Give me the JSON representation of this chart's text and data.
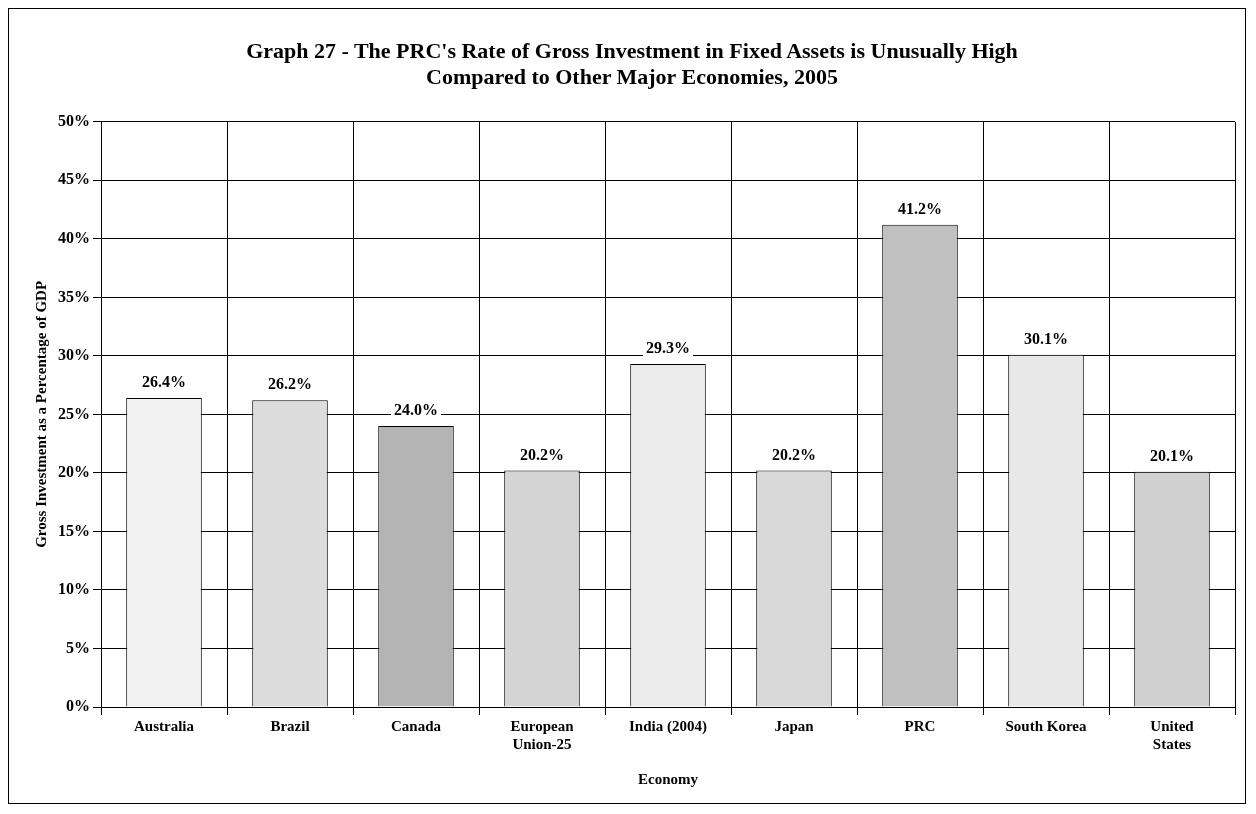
{
  "chart_data": {
    "type": "bar",
    "title": "Graph 27 - The PRC's Rate of Gross Investment in Fixed Assets is Unusually High Compared to Other Major Economies, 2005",
    "xlabel": "Economy",
    "ylabel": "Gross Investment as a Percentage of GDP",
    "categories": [
      "Australia",
      "Brazil",
      "Canada",
      "European Union-25",
      "India (2004)",
      "Japan",
      "PRC",
      "South Korea",
      "United States"
    ],
    "values": [
      26.4,
      26.2,
      24.0,
      20.2,
      29.3,
      20.2,
      41.2,
      30.1,
      20.1
    ],
    "value_labels": [
      "26.4%",
      "26.2%",
      "24.0%",
      "20.2%",
      "29.3%",
      "20.2%",
      "41.2%",
      "30.1%",
      "20.1%"
    ],
    "colors": [
      "#f2f2f2",
      "#dcdcdc",
      "#b4b4b4",
      "#d4d4d4",
      "#ececec",
      "#d8d8d8",
      "#c0c0c0",
      "#e8e8e8",
      "#d0d0d0"
    ],
    "ylim": [
      0,
      50
    ],
    "yticks": [
      {
        "value": 0,
        "label": "0%"
      },
      {
        "value": 5,
        "label": "5%"
      },
      {
        "value": 10,
        "label": "10%"
      },
      {
        "value": 15,
        "label": "15%"
      },
      {
        "value": 20,
        "label": "20%"
      },
      {
        "value": 25,
        "label": "25%"
      },
      {
        "value": 30,
        "label": "30%"
      },
      {
        "value": 35,
        "label": "35%"
      },
      {
        "value": 40,
        "label": "40%"
      },
      {
        "value": 45,
        "label": "45%"
      },
      {
        "value": 50,
        "label": "50%"
      }
    ],
    "grid": true,
    "legend": false
  }
}
